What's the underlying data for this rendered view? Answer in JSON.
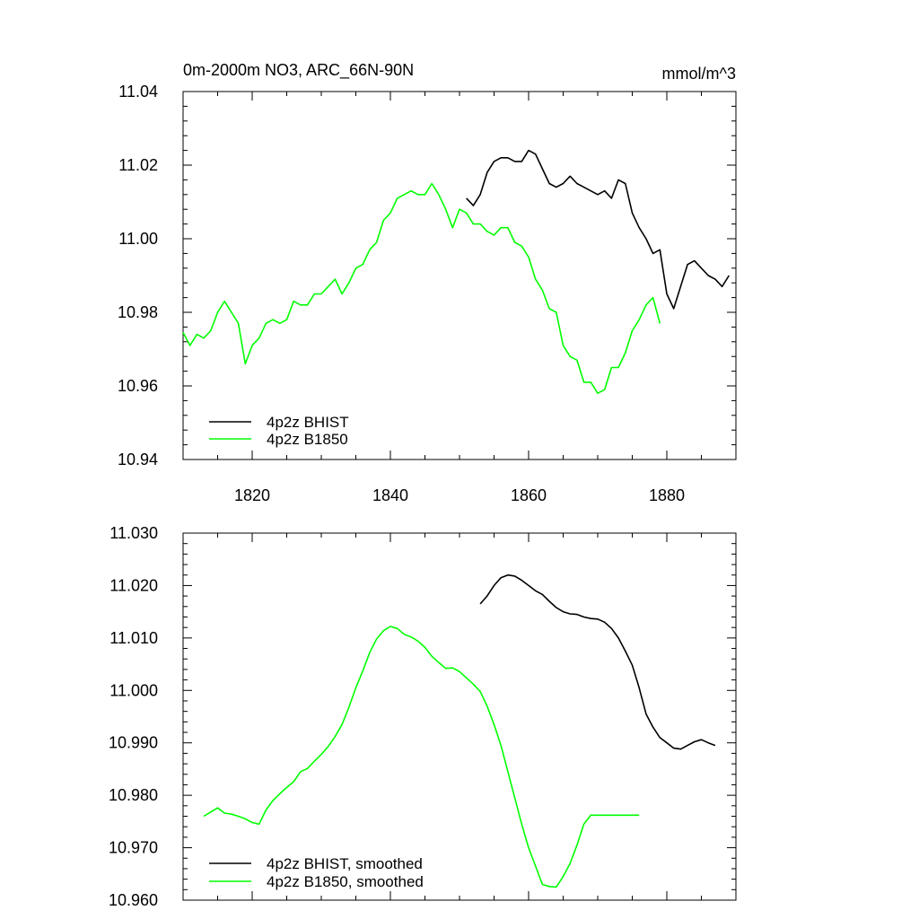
{
  "chart_data": [
    {
      "type": "line",
      "title": "0m-2000m NO3, ARC_66N-90N",
      "units": "mmol/m^3",
      "xlabel": "",
      "ylabel": "",
      "xlim": [
        1810,
        1890
      ],
      "ylim": [
        10.94,
        11.04
      ],
      "xticks": [
        1820,
        1840,
        1860,
        1880
      ],
      "xtick_labels": [
        "1820",
        "1840",
        "1860",
        "1880"
      ],
      "yticks": [
        10.94,
        10.96,
        10.98,
        11.0,
        11.02,
        11.04
      ],
      "ytick_labels": [
        "10.94",
        "10.96",
        "10.98",
        "11.00",
        "11.02",
        "11.04"
      ],
      "legend_position": "bottom-left",
      "series": [
        {
          "name": "4p2z BHIST",
          "color": "#000000",
          "x": [
            1851,
            1852,
            1853,
            1854,
            1855,
            1856,
            1857,
            1858,
            1859,
            1860,
            1861,
            1862,
            1863,
            1864,
            1865,
            1866,
            1867,
            1868,
            1869,
            1870,
            1871,
            1872,
            1873,
            1874,
            1875,
            1876,
            1877,
            1878,
            1879,
            1880,
            1881,
            1882,
            1883,
            1884,
            1885,
            1886,
            1887,
            1888,
            1889
          ],
          "values": [
            11.011,
            11.009,
            11.012,
            11.018,
            11.021,
            11.022,
            11.022,
            11.021,
            11.021,
            11.024,
            11.023,
            11.019,
            11.015,
            11.014,
            11.015,
            11.017,
            11.015,
            11.014,
            11.013,
            11.012,
            11.013,
            11.011,
            11.016,
            11.015,
            11.007,
            11.003,
            11.0,
            10.996,
            10.997,
            10.985,
            10.981,
            10.987,
            10.993,
            10.994,
            10.992,
            10.99,
            10.989,
            10.987,
            10.99
          ]
        },
        {
          "name": "4p2z B1850",
          "color": "#00ff00",
          "x": [
            1810,
            1811,
            1812,
            1813,
            1814,
            1815,
            1816,
            1817,
            1818,
            1819,
            1820,
            1821,
            1822,
            1823,
            1824,
            1825,
            1826,
            1827,
            1828,
            1829,
            1830,
            1831,
            1832,
            1833,
            1834,
            1835,
            1836,
            1837,
            1838,
            1839,
            1840,
            1841,
            1842,
            1843,
            1844,
            1845,
            1846,
            1847,
            1848,
            1849,
            1850,
            1851,
            1852,
            1853,
            1854,
            1855,
            1856,
            1857,
            1858,
            1859,
            1860,
            1861,
            1862,
            1863,
            1864,
            1865,
            1866,
            1867,
            1868,
            1869,
            1870,
            1871,
            1872,
            1873,
            1874,
            1875,
            1876,
            1877,
            1878,
            1879
          ],
          "values": [
            10.9745,
            10.971,
            10.974,
            10.973,
            10.975,
            10.98,
            10.983,
            10.98,
            10.977,
            10.966,
            10.971,
            10.973,
            10.977,
            10.978,
            10.977,
            10.978,
            10.983,
            10.982,
            10.982,
            10.985,
            10.985,
            10.987,
            10.989,
            10.985,
            10.988,
            10.992,
            10.993,
            10.997,
            10.999,
            11.005,
            11.007,
            11.011,
            11.012,
            11.013,
            11.012,
            11.012,
            11.015,
            11.012,
            11.008,
            11.003,
            11.008,
            11.007,
            11.004,
            11.004,
            11.002,
            11.001,
            11.003,
            11.003,
            10.999,
            10.998,
            10.995,
            10.989,
            10.986,
            10.981,
            10.98,
            10.971,
            10.968,
            10.967,
            10.961,
            10.961,
            10.958,
            10.959,
            10.965,
            10.965,
            10.969,
            10.975,
            10.978,
            10.982,
            10.984,
            10.977
          ]
        }
      ]
    },
    {
      "type": "line",
      "title": "",
      "xlabel": "",
      "ylabel": "",
      "xlim": [
        1810,
        1890
      ],
      "ylim": [
        10.96,
        11.03
      ],
      "xticks": [
        1820,
        1840,
        1860,
        1880
      ],
      "yticks": [
        10.96,
        10.97,
        10.98,
        10.99,
        11.0,
        11.01,
        11.02,
        11.03
      ],
      "ytick_labels": [
        "10.960",
        "10.970",
        "10.980",
        "10.990",
        "11.000",
        "11.010",
        "11.020",
        "11.030"
      ],
      "legend_position": "bottom-left",
      "series": [
        {
          "name": "4p2z BHIST, smoothed",
          "color": "#000000",
          "x": [
            1853,
            1854,
            1855,
            1856,
            1857,
            1858,
            1859,
            1860,
            1861,
            1862,
            1863,
            1864,
            1865,
            1866,
            1867,
            1868,
            1869,
            1870,
            1871,
            1872,
            1873,
            1874,
            1875,
            1876,
            1877,
            1878,
            1879,
            1880,
            1881,
            1882,
            1883,
            1884,
            1885,
            1886,
            1887
          ],
          "values": [
            11.0165,
            11.018,
            11.02,
            11.0215,
            11.022,
            11.0218,
            11.021,
            11.02,
            11.019,
            11.0183,
            11.017,
            11.0158,
            11.015,
            11.0146,
            11.0145,
            11.014,
            11.0137,
            11.0136,
            11.013,
            11.0118,
            11.01,
            11.0075,
            11.0048,
            11.0005,
            10.9955,
            10.993,
            10.991,
            10.99,
            10.989,
            10.9888,
            10.9895,
            10.9902,
            10.9906,
            10.99,
            10.9895
          ]
        },
        {
          "name": "4p2z B1850, smoothed",
          "color": "#00ff00",
          "x": [
            1813,
            1814,
            1815,
            1816,
            1817,
            1818,
            1819,
            1820,
            1821,
            1822,
            1823,
            1824,
            1825,
            1826,
            1827,
            1828,
            1829,
            1830,
            1831,
            1832,
            1833,
            1834,
            1835,
            1836,
            1837,
            1838,
            1839,
            1840,
            1841,
            1842,
            1843,
            1844,
            1845,
            1846,
            1847,
            1848,
            1849,
            1850,
            1851,
            1852,
            1853,
            1854,
            1855,
            1856,
            1857,
            1858,
            1859,
            1860,
            1861,
            1862,
            1863,
            1864,
            1865,
            1866,
            1867,
            1868,
            1869,
            1870,
            1871,
            1872,
            1873,
            1874,
            1875,
            1876
          ],
          "values": [
            10.976,
            10.9768,
            10.9776,
            10.9766,
            10.9764,
            10.976,
            10.9755,
            10.9748,
            10.9745,
            10.9772,
            10.979,
            10.9803,
            10.9815,
            10.9826,
            10.9845,
            10.9851,
            10.9865,
            10.9878,
            10.9893,
            10.9912,
            10.9935,
            10.9968,
            11.0005,
            11.0037,
            11.0072,
            11.0098,
            11.0114,
            11.0122,
            11.0118,
            11.0107,
            11.0102,
            11.0094,
            11.0082,
            11.0065,
            11.0053,
            11.0042,
            11.0043,
            11.0036,
            11.0024,
            11.0012,
            10.9998,
            10.997,
            10.9935,
            10.9895,
            10.9845,
            10.9795,
            10.9745,
            10.97,
            10.9665,
            10.963,
            10.9626,
            10.9625,
            10.9645,
            10.967,
            10.9705,
            10.9745,
            10.9762,
            10.9762,
            10.9762,
            10.9762,
            10.9762,
            10.9762,
            10.9762,
            10.9762
          ]
        }
      ]
    }
  ]
}
